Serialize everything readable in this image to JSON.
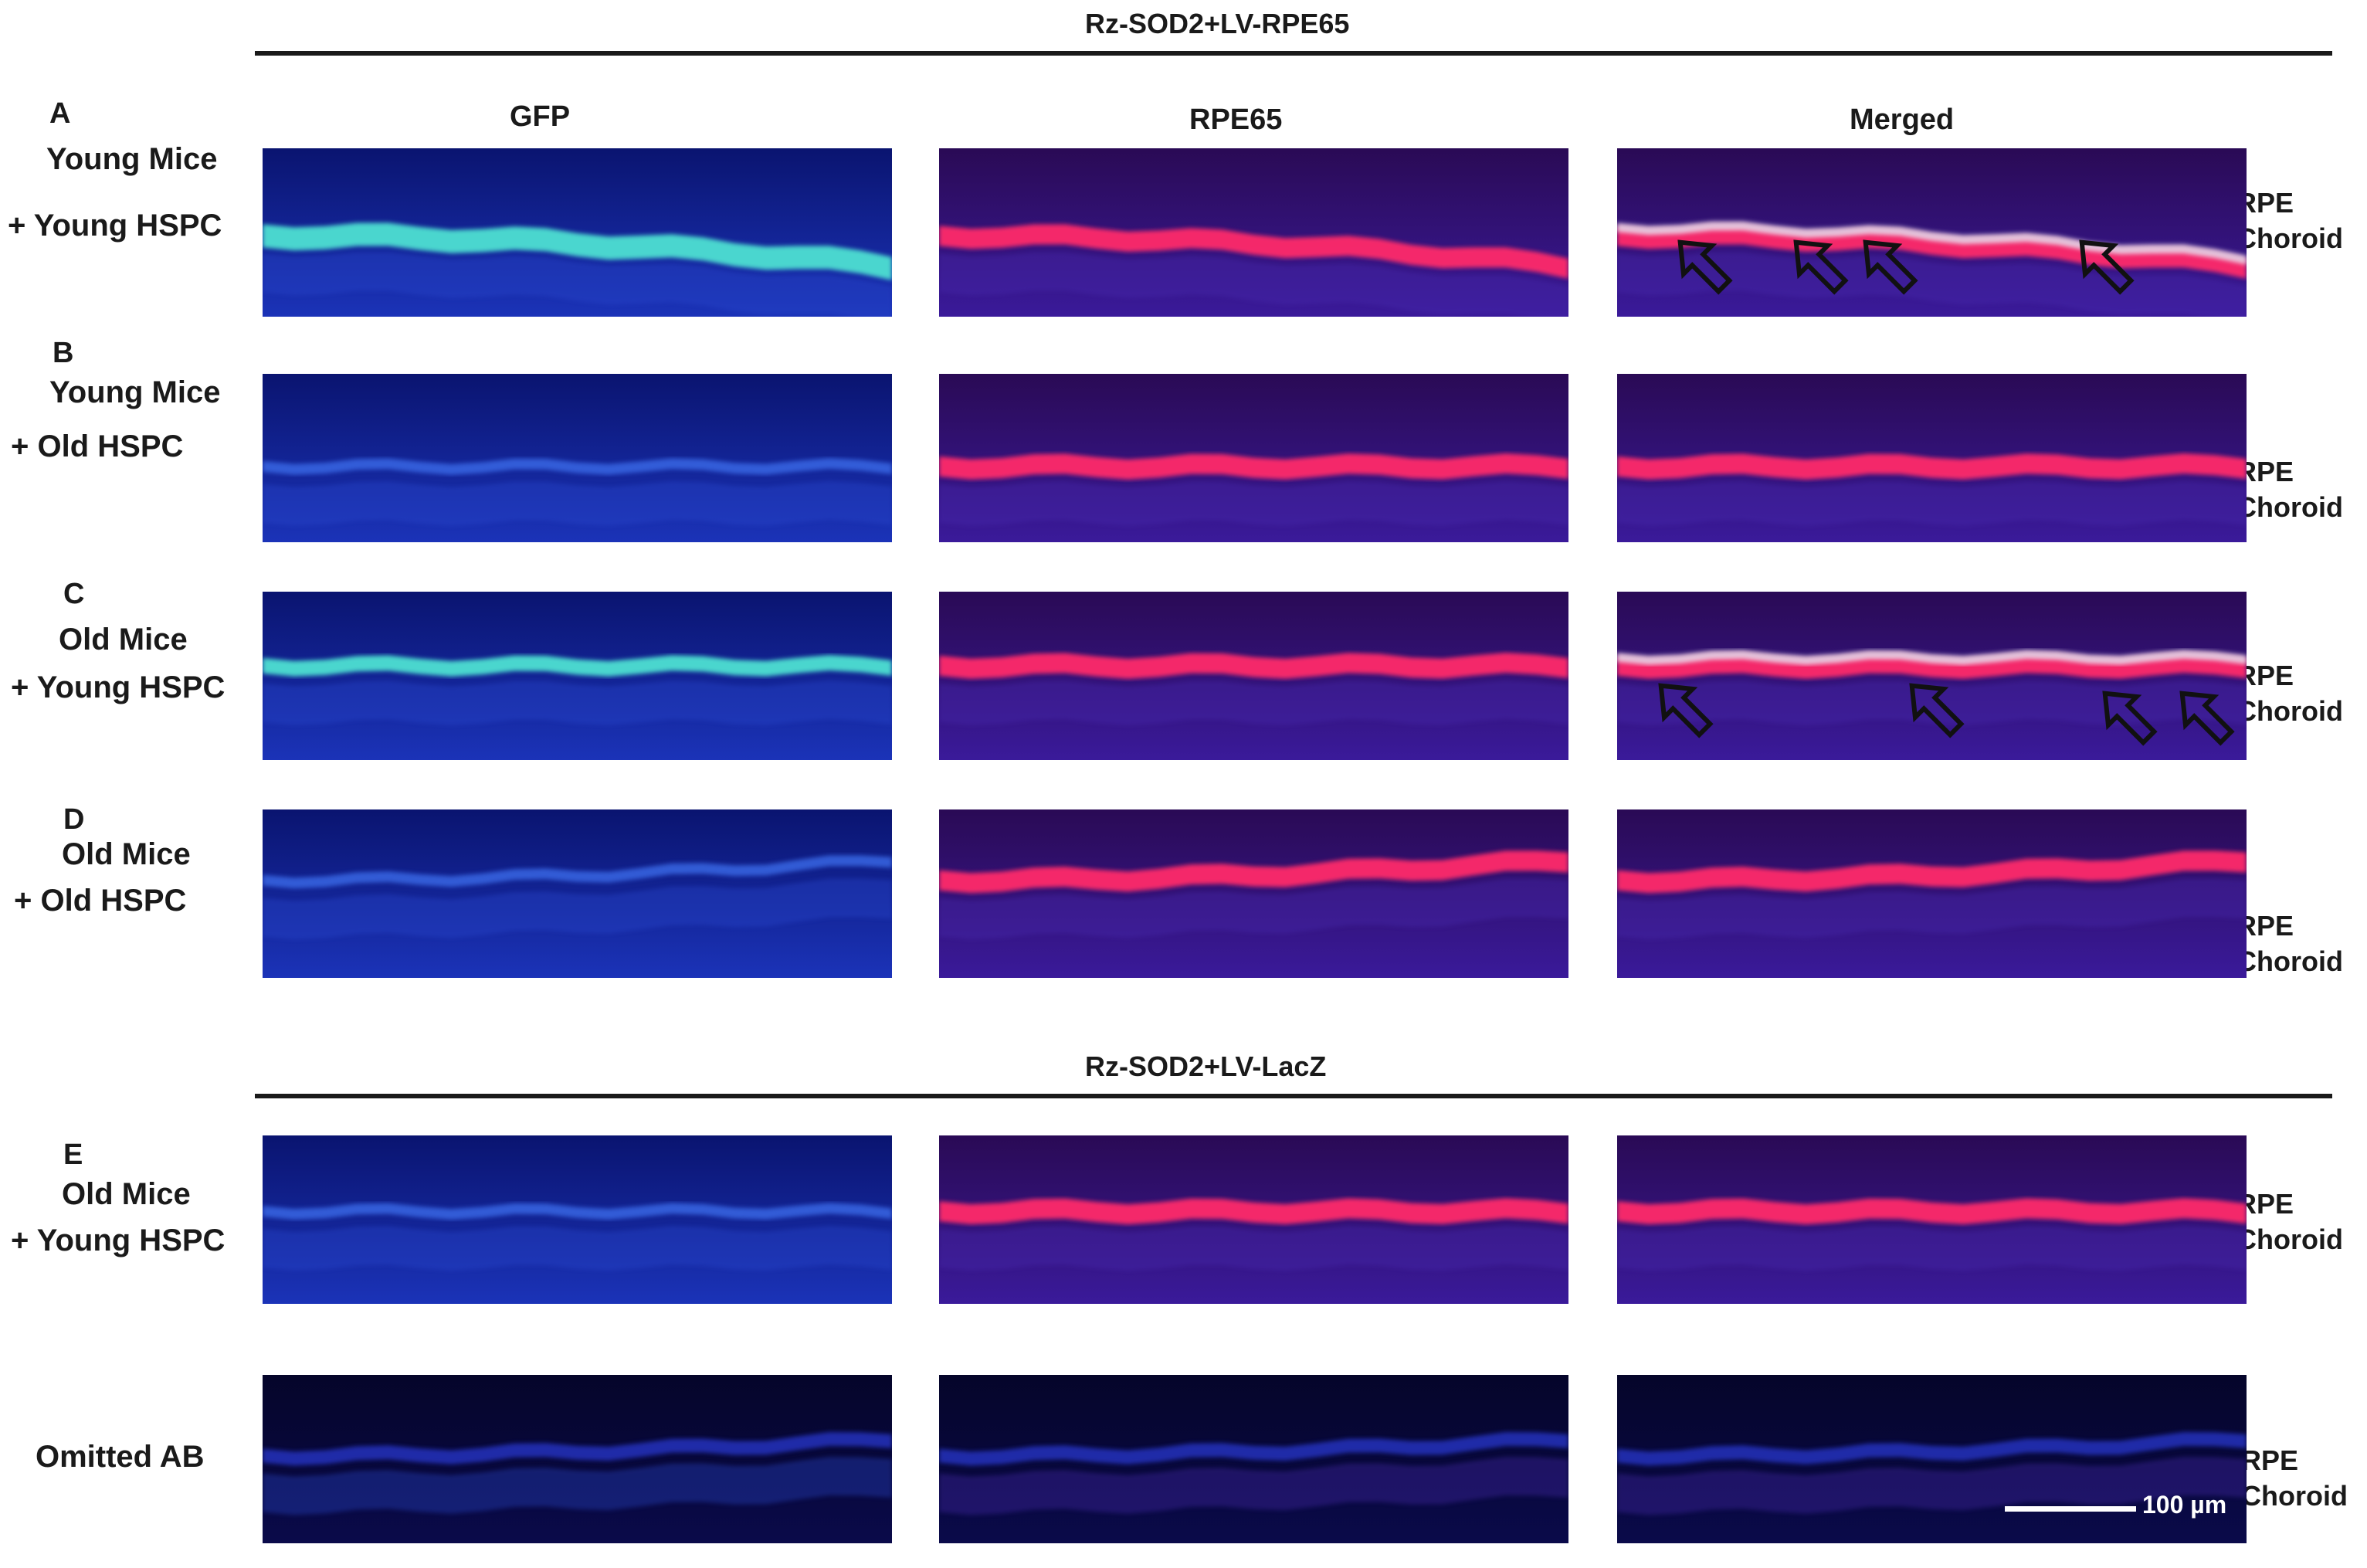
{
  "sections": [
    {
      "title": "Rz-SOD2+LV-RPE65"
    },
    {
      "title": "Rz-SOD2+LV-LacZ"
    }
  ],
  "columns": [
    "GFP",
    "RPE65",
    "Merged"
  ],
  "rows": [
    {
      "letter": "A",
      "line1": "Young Mice",
      "line2": "+ Young HSPC",
      "labels": [
        "RPE",
        "Choroid"
      ]
    },
    {
      "letter": "B",
      "line1": "Young Mice",
      "line2": "+ Old HSPC",
      "labels": [
        "RPE",
        "Choroid"
      ]
    },
    {
      "letter": "C",
      "line1": "Old Mice",
      "line2": "+ Young HSPC",
      "labels": [
        "RPE",
        "Choroid"
      ]
    },
    {
      "letter": "D",
      "line1": "Old Mice",
      "line2": "+ Old HSPC",
      "labels": [
        "RPE",
        "Choroid"
      ]
    },
    {
      "letter": "E",
      "line1": "Old Mice",
      "line2": "+ Young HSPC",
      "labels": [
        "RPE",
        "Choroid"
      ]
    },
    {
      "letter": "",
      "line1": "Omitted AB",
      "line2": "",
      "labels": [
        "RPE",
        "Choroid"
      ]
    }
  ],
  "scale_bar": {
    "label": "100 µm"
  },
  "colors": {
    "gfp_signal": "#4de0d2",
    "rpe65_signal": "#ff2a6a",
    "merged_signal": "#e8dcec",
    "dapi_background": "#1a2a9a"
  }
}
